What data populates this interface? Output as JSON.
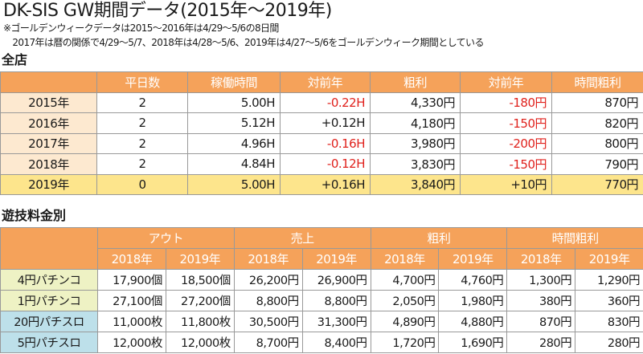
{
  "title": "DK-SIS GW期間データ(2015年～2019年)",
  "notes": [
    "※ゴールデンウィークデータは2015～2016年は4/29～5/6の8日間",
    "　2017年は暦の関係で4/29～5/7、2018年は4/28～5/6、2019年は4/27～5/6をゴールデンウィーク期間としている"
  ],
  "colors": {
    "header": "#f5a25a",
    "year_cell": "#fde9d0",
    "highlight_row": "#fde58c",
    "negative": "#e0211c",
    "pachinko": "#eef2c4",
    "slot": "#bde0ea"
  },
  "all_stores": {
    "heading": "全店",
    "columns": [
      "",
      "平日数",
      "稼働時間",
      "対前年",
      "粗利",
      "対前年",
      "時間粗利"
    ],
    "rows": [
      {
        "year": "2015年",
        "cells": [
          "2",
          "5.00H",
          "-0.22H",
          "4,330円",
          "-180円",
          "870円"
        ],
        "neg": [
          false,
          false,
          true,
          false,
          true,
          false
        ]
      },
      {
        "year": "2016年",
        "cells": [
          "2",
          "5.12H",
          "+0.12H",
          "4,180円",
          "-150円",
          "820円"
        ],
        "neg": [
          false,
          false,
          false,
          false,
          true,
          false
        ]
      },
      {
        "year": "2017年",
        "cells": [
          "2",
          "4.96H",
          "-0.16H",
          "3,980円",
          "-200円",
          "800円"
        ],
        "neg": [
          false,
          false,
          true,
          false,
          true,
          false
        ]
      },
      {
        "year": "2018年",
        "cells": [
          "2",
          "4.84H",
          "-0.12H",
          "3,830円",
          "-150円",
          "790円"
        ],
        "neg": [
          false,
          false,
          true,
          false,
          true,
          false
        ]
      },
      {
        "year": "2019年",
        "cells": [
          "0",
          "5.00H",
          "+0.16H",
          "3,840円",
          "+10円",
          "770円"
        ],
        "neg": [
          false,
          false,
          false,
          false,
          false,
          false
        ]
      }
    ]
  },
  "by_rate": {
    "heading": "遊技料金別",
    "groups": [
      "アウト",
      "売上",
      "粗利",
      "時間粗利"
    ],
    "years": [
      "2018年",
      "2019年"
    ],
    "rows": [
      {
        "label": "4円パチンコ",
        "type": "pk",
        "cells": [
          "17,900個",
          "18,500個",
          "26,200円",
          "26,900円",
          "4,700円",
          "4,760円",
          "1,300円",
          "1,290円"
        ]
      },
      {
        "label": "1円パチンコ",
        "type": "pk",
        "cells": [
          "27,100個",
          "27,200個",
          "8,800円",
          "8,800円",
          "2,050円",
          "1,980円",
          "380円",
          "360円"
        ]
      },
      {
        "label": "20円パチスロ",
        "type": "sl",
        "cells": [
          "11,000枚",
          "11,800枚",
          "30,500円",
          "31,300円",
          "4,890円",
          "4,880円",
          "870円",
          "830円"
        ]
      },
      {
        "label": "5円パチスロ",
        "type": "sl",
        "cells": [
          "12,000枚",
          "12,000枚",
          "8,700円",
          "8,400円",
          "1,720円",
          "1,690円",
          "280円",
          "280円"
        ]
      }
    ]
  }
}
